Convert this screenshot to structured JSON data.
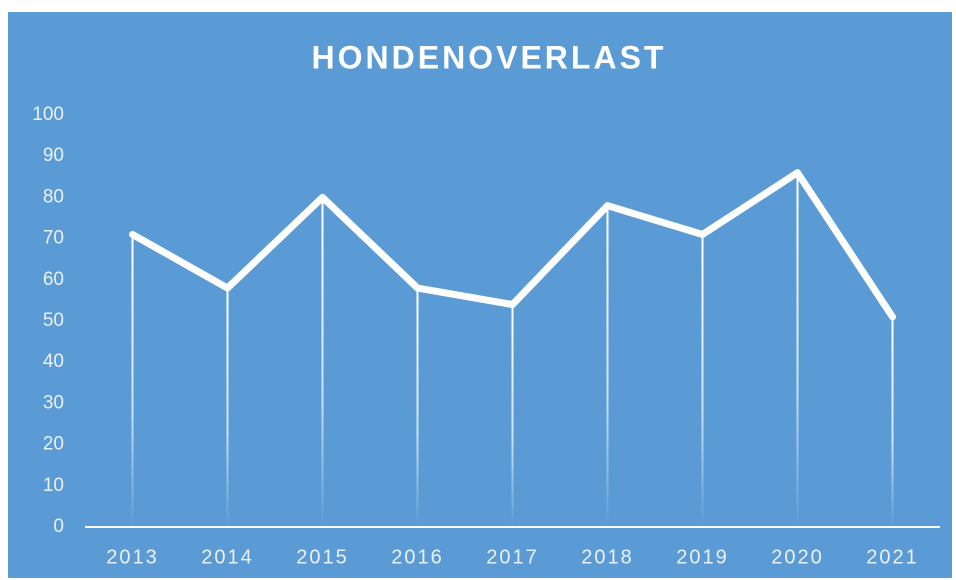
{
  "chart_data": {
    "type": "line",
    "title": "HONDENOVERLAST",
    "categories": [
      "2013",
      "2014",
      "2015",
      "2016",
      "2017",
      "2018",
      "2019",
      "2020",
      "2021"
    ],
    "values": [
      71,
      58,
      80,
      58,
      54,
      78,
      71,
      86,
      51
    ],
    "color": "#ffffff",
    "background": "#5b9bd5",
    "ylim": [
      0,
      100
    ],
    "yticks": [
      0,
      10,
      20,
      30,
      40,
      50,
      60,
      70,
      80,
      90,
      100
    ],
    "drop_lines": true
  }
}
